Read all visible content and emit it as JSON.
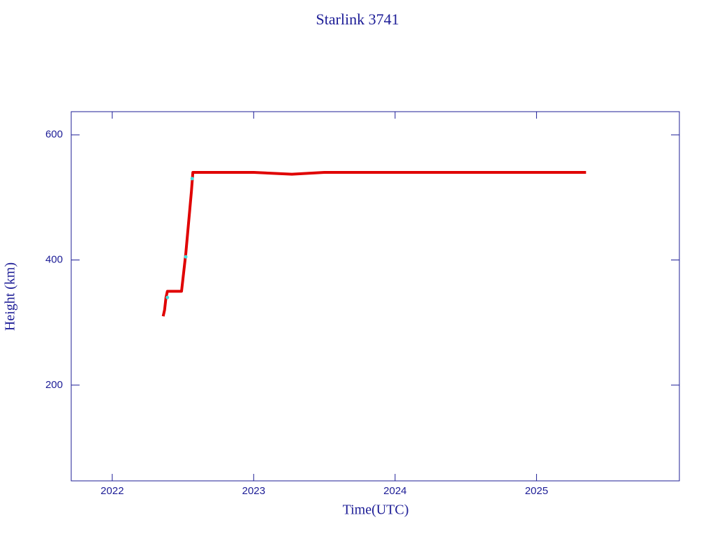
{
  "chart_data": {
    "type": "line",
    "title": "Starlink 3741",
    "x_label": "Time(UTC)",
    "y_label": "Height (km)",
    "xlim": [
      2021.71,
      2026.01
    ],
    "xticks": [
      2022,
      2023,
      2024,
      2025
    ],
    "ylim": [
      47,
      637
    ],
    "yticks": [
      200,
      400,
      600
    ],
    "axis_color": "#1c1c96",
    "series": [
      {
        "color": "#e00000",
        "x": [
          2022.36,
          2022.37,
          2022.38,
          2022.39,
          2022.42,
          2022.46,
          2022.49,
          2022.5,
          2022.52,
          2022.54,
          2022.56,
          2022.57,
          2022.6,
          2022.8,
          2023.0,
          2023.27,
          2023.5,
          2024.0,
          2024.5,
          2025.0,
          2025.35
        ],
        "values": [
          310,
          320,
          340,
          350,
          350,
          350,
          350,
          370,
          410,
          460,
          510,
          540,
          540,
          540,
          540,
          537,
          540,
          540,
          540,
          540,
          540
        ]
      },
      {
        "color": "#40e0e0",
        "x": [
          2022.39,
          2022.52,
          2022.565
        ],
        "values": [
          340,
          405,
          530
        ]
      }
    ]
  }
}
